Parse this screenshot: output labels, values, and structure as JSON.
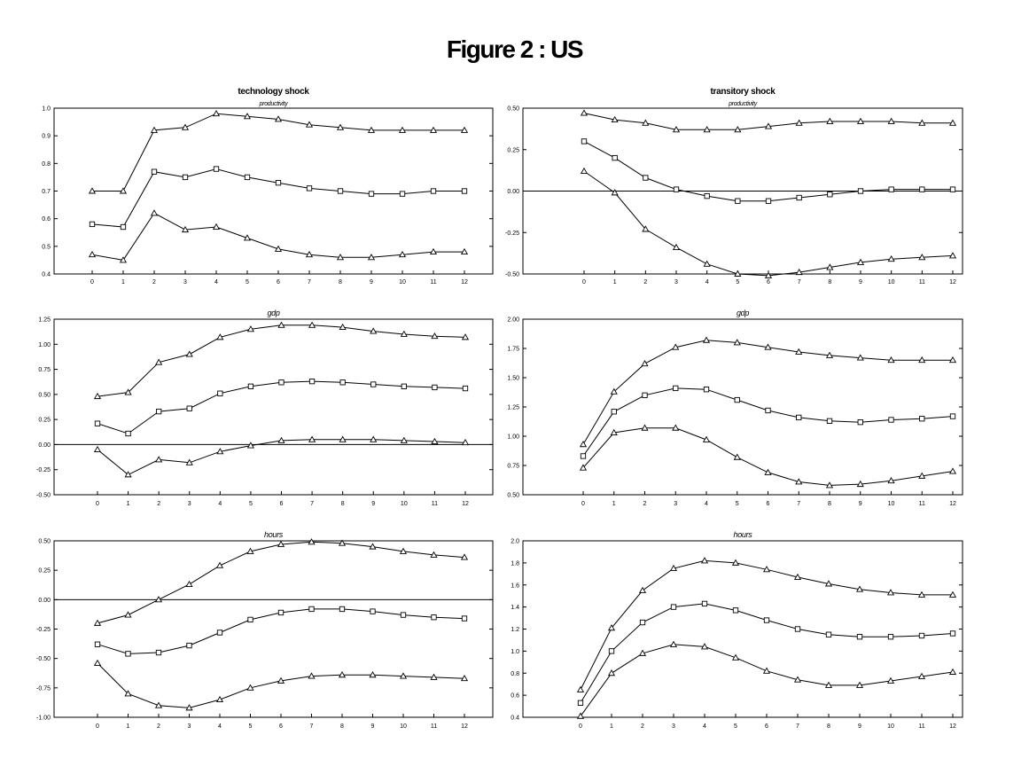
{
  "figure": {
    "title": "Figure 2 : US"
  },
  "chart_data": [
    {
      "type": "line",
      "title": "technology shock",
      "subtitle": "productivity",
      "x": [
        0,
        1,
        2,
        3,
        4,
        5,
        6,
        7,
        8,
        9,
        10,
        11,
        12
      ],
      "ylim": [
        0.4,
        1.0
      ],
      "yticks": [
        "1.0",
        "0.9",
        "0.8",
        "0.7",
        "0.6",
        "0.5",
        "0.4"
      ],
      "zero_line": false,
      "series": [
        {
          "marker": "triangle",
          "values": [
            0.7,
            0.7,
            0.92,
            0.93,
            0.98,
            0.97,
            0.96,
            0.94,
            0.93,
            0.92,
            0.92,
            0.92,
            0.92
          ]
        },
        {
          "marker": "square",
          "values": [
            0.58,
            0.57,
            0.77,
            0.75,
            0.78,
            0.75,
            0.73,
            0.71,
            0.7,
            0.69,
            0.69,
            0.7,
            0.7
          ]
        },
        {
          "marker": "triangle",
          "values": [
            0.47,
            0.45,
            0.62,
            0.56,
            0.57,
            0.53,
            0.49,
            0.47,
            0.46,
            0.46,
            0.47,
            0.48,
            0.48
          ]
        }
      ]
    },
    {
      "type": "line",
      "title": "transitory shock",
      "subtitle": "productivity",
      "x": [
        0,
        1,
        2,
        3,
        4,
        5,
        6,
        7,
        8,
        9,
        10,
        11,
        12
      ],
      "ylim": [
        -0.5,
        0.5
      ],
      "yticks": [
        "0.50",
        "0.25",
        "0.00",
        "-0.25",
        "-0.50"
      ],
      "zero_line": true,
      "series": [
        {
          "marker": "triangle",
          "values": [
            0.47,
            0.43,
            0.41,
            0.37,
            0.37,
            0.37,
            0.39,
            0.41,
            0.42,
            0.42,
            0.42,
            0.41,
            0.41
          ]
        },
        {
          "marker": "square",
          "values": [
            0.3,
            0.2,
            0.08,
            0.01,
            -0.03,
            -0.06,
            -0.06,
            -0.04,
            -0.02,
            0.0,
            0.01,
            0.01,
            0.01
          ]
        },
        {
          "marker": "triangle",
          "values": [
            0.12,
            -0.01,
            -0.23,
            -0.34,
            -0.44,
            -0.5,
            -0.51,
            -0.49,
            -0.46,
            -0.43,
            -0.41,
            -0.4,
            -0.39
          ]
        }
      ]
    },
    {
      "type": "line",
      "title": "",
      "subtitle": "gdp",
      "x": [
        0,
        1,
        2,
        3,
        4,
        5,
        6,
        7,
        8,
        9,
        10,
        11,
        12
      ],
      "ylim": [
        -0.5,
        1.25
      ],
      "yticks": [
        "1.25",
        "1.00",
        "0.75",
        "0.50",
        "0.25",
        "0.00",
        "-0.25",
        "-0.50"
      ],
      "zero_line": true,
      "series": [
        {
          "marker": "triangle",
          "values": [
            0.48,
            0.52,
            0.82,
            0.9,
            1.07,
            1.15,
            1.19,
            1.19,
            1.17,
            1.13,
            1.1,
            1.08,
            1.07
          ]
        },
        {
          "marker": "square",
          "values": [
            0.21,
            0.11,
            0.33,
            0.36,
            0.51,
            0.58,
            0.62,
            0.63,
            0.62,
            0.6,
            0.58,
            0.57,
            0.56
          ]
        },
        {
          "marker": "triangle",
          "values": [
            -0.05,
            -0.3,
            -0.15,
            -0.18,
            -0.07,
            -0.01,
            0.04,
            0.05,
            0.05,
            0.05,
            0.04,
            0.03,
            0.02
          ]
        }
      ]
    },
    {
      "type": "line",
      "title": "",
      "subtitle": "gdp",
      "x": [
        0,
        1,
        2,
        3,
        4,
        5,
        6,
        7,
        8,
        9,
        10,
        11,
        12
      ],
      "ylim": [
        0.5,
        2.0
      ],
      "yticks": [
        "2.00",
        "1.75",
        "1.50",
        "1.25",
        "1.00",
        "0.75",
        "0.50"
      ],
      "zero_line": false,
      "series": [
        {
          "marker": "triangle",
          "values": [
            0.93,
            1.38,
            1.62,
            1.76,
            1.82,
            1.8,
            1.76,
            1.72,
            1.69,
            1.67,
            1.65,
            1.65,
            1.65
          ]
        },
        {
          "marker": "square",
          "values": [
            0.83,
            1.21,
            1.35,
            1.41,
            1.4,
            1.31,
            1.22,
            1.16,
            1.13,
            1.12,
            1.14,
            1.15,
            1.17
          ]
        },
        {
          "marker": "triangle",
          "values": [
            0.73,
            1.03,
            1.07,
            1.07,
            0.97,
            0.82,
            0.69,
            0.61,
            0.58,
            0.59,
            0.62,
            0.66,
            0.7
          ]
        }
      ]
    },
    {
      "type": "line",
      "title": "",
      "subtitle": "hours",
      "x": [
        0,
        1,
        2,
        3,
        4,
        5,
        6,
        7,
        8,
        9,
        10,
        11,
        12
      ],
      "ylim": [
        -1.0,
        0.5
      ],
      "yticks": [
        "0.50",
        "0.25",
        "0.00",
        "-0.25",
        "-0.50",
        "-0.75",
        "-1.00"
      ],
      "zero_line": true,
      "series": [
        {
          "marker": "triangle",
          "values": [
            -0.2,
            -0.13,
            0.0,
            0.13,
            0.29,
            0.41,
            0.47,
            0.49,
            0.48,
            0.45,
            0.41,
            0.38,
            0.36
          ]
        },
        {
          "marker": "square",
          "values": [
            -0.38,
            -0.46,
            -0.45,
            -0.39,
            -0.28,
            -0.17,
            -0.11,
            -0.08,
            -0.08,
            -0.1,
            -0.13,
            -0.15,
            -0.16
          ]
        },
        {
          "marker": "triangle",
          "values": [
            -0.54,
            -0.8,
            -0.9,
            -0.92,
            -0.85,
            -0.75,
            -0.69,
            -0.65,
            -0.64,
            -0.64,
            -0.65,
            -0.66,
            -0.67
          ]
        }
      ]
    },
    {
      "type": "line",
      "title": "",
      "subtitle": "hours",
      "x": [
        0,
        1,
        2,
        3,
        4,
        5,
        6,
        7,
        8,
        9,
        10,
        11,
        12
      ],
      "ylim": [
        0.4,
        2.0
      ],
      "yticks": [
        "2.0",
        "1.8",
        "1.6",
        "1.4",
        "1.2",
        "1.0",
        "0.8",
        "0.6",
        "0.4"
      ],
      "zero_line": false,
      "series": [
        {
          "marker": "triangle",
          "values": [
            0.65,
            1.21,
            1.55,
            1.75,
            1.82,
            1.8,
            1.74,
            1.67,
            1.61,
            1.56,
            1.53,
            1.51,
            1.51
          ]
        },
        {
          "marker": "square",
          "values": [
            0.53,
            1.0,
            1.26,
            1.4,
            1.43,
            1.37,
            1.28,
            1.2,
            1.15,
            1.13,
            1.13,
            1.14,
            1.16
          ]
        },
        {
          "marker": "triangle",
          "values": [
            0.41,
            0.8,
            0.98,
            1.06,
            1.04,
            0.94,
            0.82,
            0.74,
            0.69,
            0.69,
            0.73,
            0.77,
            0.81
          ]
        }
      ]
    }
  ]
}
